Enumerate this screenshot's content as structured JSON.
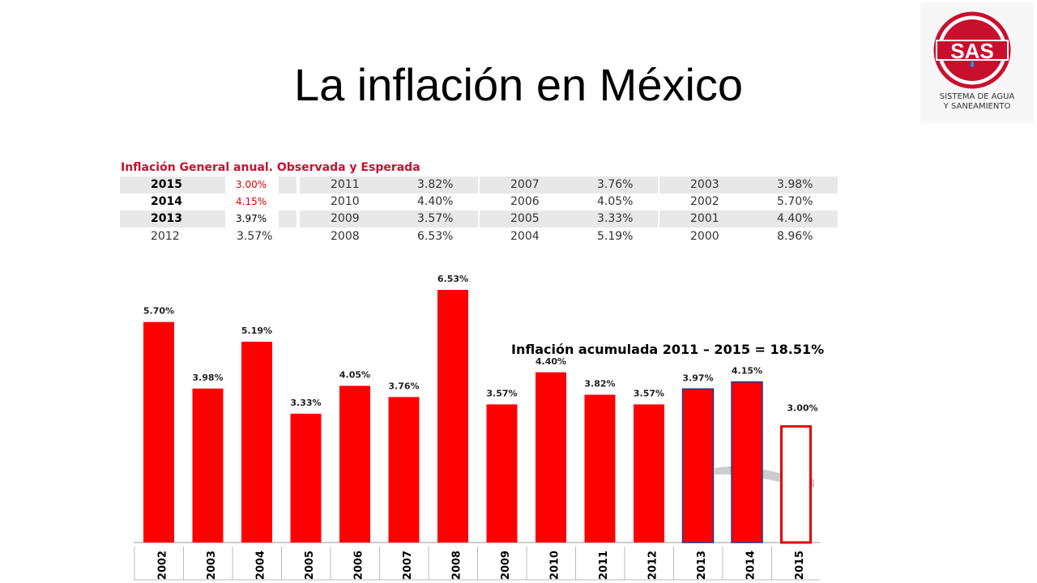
{
  "slide": {
    "title": "La inflación en México"
  },
  "logo": {
    "text": "SAS",
    "line1": "SISTEMA DE AGUA",
    "line2": "Y SANEAMIENTO",
    "colors": {
      "ring": "#c8102e",
      "text": "#ffffff",
      "drop": "#1e90ff"
    }
  },
  "table": {
    "title": "Inflación General anual. Observada y Esperada",
    "columns": [
      [
        {
          "year": "2015",
          "value": "3.00%"
        },
        {
          "year": "2014",
          "value": "4.15%"
        },
        {
          "year": "2013",
          "value": "3.97%"
        },
        {
          "year": "2012",
          "value": "3.57%"
        }
      ],
      [
        {
          "year": "2011",
          "value": "3.82%"
        },
        {
          "year": "2010",
          "value": "4.40%"
        },
        {
          "year": "2009",
          "value": "3.57%"
        },
        {
          "year": "2008",
          "value": "6.53%"
        }
      ],
      [
        {
          "year": "2007",
          "value": "3.76%"
        },
        {
          "year": "2006",
          "value": "4.05%"
        },
        {
          "year": "2005",
          "value": "3.33%"
        },
        {
          "year": "2004",
          "value": "5.19%"
        }
      ],
      [
        {
          "year": "2003",
          "value": "3.98%"
        },
        {
          "year": "2002",
          "value": "5.70%"
        },
        {
          "year": "2001",
          "value": "4.40%"
        },
        {
          "year": "2000",
          "value": "8.96%"
        }
      ]
    ]
  },
  "annotation": "Inflación acumulada  2011 – 2015 = 18.51%",
  "chart_data": {
    "type": "bar",
    "categories": [
      "2002",
      "2003",
      "2004",
      "2005",
      "2006",
      "2007",
      "2008",
      "2009",
      "2010",
      "2011",
      "2012",
      "2013",
      "2014",
      "2015"
    ],
    "values": [
      5.7,
      3.98,
      5.19,
      3.33,
      4.05,
      3.76,
      6.53,
      3.57,
      4.4,
      3.82,
      3.57,
      3.97,
      4.15,
      3.0
    ],
    "labels": [
      "5.70%",
      "3.98%",
      "5.19%",
      "3.33%",
      "4.05%",
      "3.76%",
      "6.53%",
      "3.57%",
      "4.40%",
      "3.82%",
      "3.57%",
      "3.97%",
      "4.15%",
      "3.00%"
    ],
    "ylim": [
      0,
      6.6
    ],
    "grid": false,
    "colors": {
      "bar": "#ff0000",
      "expected_outline": "#1f3a93",
      "forecast_outline": "#e00000",
      "trend": "#cccccc"
    }
  }
}
